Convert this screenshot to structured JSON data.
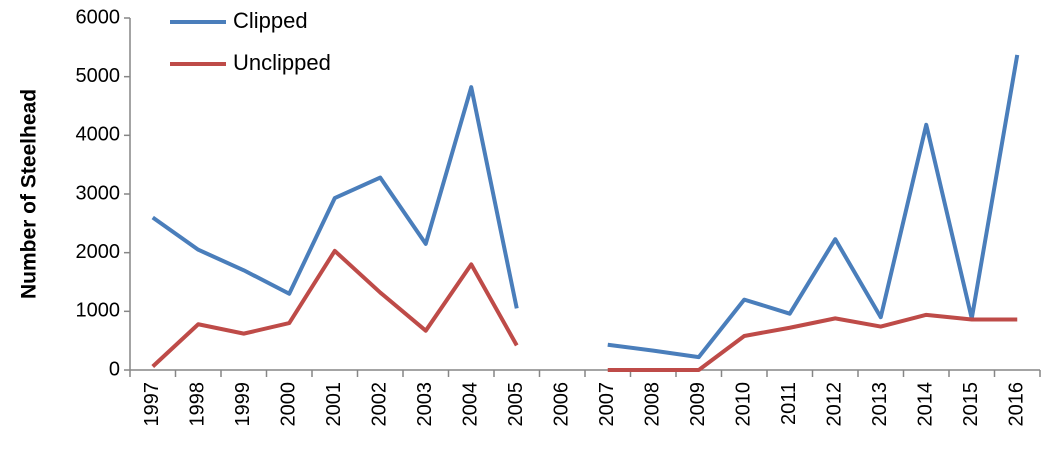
{
  "chart_data": {
    "type": "line",
    "y_label": "Number of Steelhead",
    "categories": [
      "1997",
      "1998",
      "1999",
      "2000",
      "2001",
      "2002",
      "2003",
      "2004",
      "2005",
      "2006",
      "2007",
      "2008",
      "2009",
      "2010",
      "2011",
      "2012",
      "2013",
      "2014",
      "2015",
      "2016"
    ],
    "series": [
      {
        "name": "Clipped",
        "color": "#4a7ebb",
        "values": [
          2600,
          2050,
          1700,
          1300,
          2930,
          3280,
          2150,
          4820,
          1050,
          null,
          430,
          330,
          220,
          1200,
          960,
          2230,
          900,
          4180,
          880,
          5370
        ]
      },
      {
        "name": "Unclipped",
        "color": "#be4b48",
        "values": [
          60,
          780,
          620,
          800,
          2030,
          1320,
          670,
          1800,
          420,
          null,
          0,
          0,
          0,
          580,
          720,
          880,
          740,
          940,
          860,
          860
        ]
      }
    ],
    "ylim": [
      0,
      6000
    ],
    "yticks": [
      0,
      1000,
      2000,
      3000,
      4000,
      5000,
      6000
    ],
    "grid": false,
    "legend": "top-left"
  }
}
